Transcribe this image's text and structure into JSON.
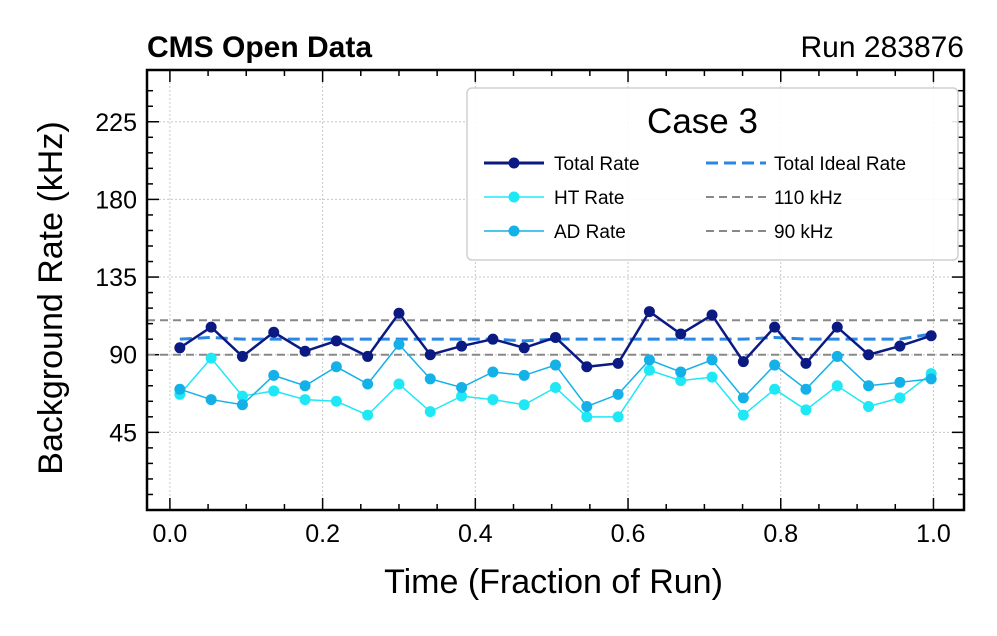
{
  "chart_data": {
    "type": "line",
    "header_left": "CMS Open Data",
    "header_right": "Run 283876",
    "xlabel": "Time (Fraction of Run)",
    "ylabel": "Background Rate (kHz)",
    "xlim": [
      -0.03,
      1.04
    ],
    "ylim": [
      0,
      255
    ],
    "x_ticks": [
      0.0,
      0.2,
      0.4,
      0.6,
      0.8,
      1.0
    ],
    "x_tick_labels": [
      "0.0",
      "0.2",
      "0.4",
      "0.6",
      "0.8",
      "1.0"
    ],
    "y_ticks": [
      45,
      90,
      135,
      180,
      225
    ],
    "y_tick_labels": [
      "45",
      "90",
      "135",
      "180",
      "225"
    ],
    "grid": true,
    "legend": {
      "title": "Case 3",
      "placement": "top-right",
      "entries": [
        "Total Rate",
        "HT Rate",
        "AD Rate",
        "Total Ideal Rate",
        "110 kHz",
        "90 kHz"
      ]
    },
    "x": [
      0.013,
      0.054,
      0.095,
      0.136,
      0.177,
      0.218,
      0.259,
      0.3,
      0.341,
      0.382,
      0.423,
      0.464,
      0.505,
      0.546,
      0.587,
      0.628,
      0.669,
      0.71,
      0.751,
      0.792,
      0.833,
      0.874,
      0.915,
      0.956,
      0.997
    ],
    "series": [
      {
        "name": "Total Rate",
        "color": "#0b1a82",
        "style": "solid-marker",
        "values": [
          94,
          106,
          89,
          103,
          92,
          98,
          89,
          114,
          90,
          95,
          99,
          94,
          100,
          83,
          85,
          115,
          102,
          113,
          86,
          106,
          85,
          106,
          90,
          95,
          101
        ]
      },
      {
        "name": "HT Rate",
        "color": "#1ee8f5",
        "style": "solid-marker",
        "values": [
          67,
          88,
          66,
          69,
          64,
          63,
          55,
          73,
          57,
          66,
          64,
          61,
          71,
          54,
          54,
          81,
          75,
          77,
          55,
          70,
          58,
          72,
          60,
          65,
          79
        ]
      },
      {
        "name": "AD Rate",
        "color": "#13b1e8",
        "style": "solid-marker",
        "values": [
          70,
          64,
          61,
          78,
          72,
          83,
          73,
          96,
          76,
          71,
          80,
          78,
          84,
          60,
          67,
          87,
          80,
          87,
          65,
          84,
          70,
          89,
          72,
          74,
          76
        ]
      },
      {
        "name": "Total Ideal Rate",
        "color": "#2a87e3",
        "style": "dashed",
        "values": [
          99,
          100,
          99,
          99,
          99,
          99,
          99,
          99,
          99,
          99,
          99,
          98,
          99,
          99,
          99,
          99,
          99,
          99,
          99,
          100,
          99,
          99,
          99,
          99,
          102
        ]
      },
      {
        "name": "110 kHz",
        "color": "#888888",
        "style": "dashed-hline",
        "value": 110
      },
      {
        "name": "90 kHz",
        "color": "#888888",
        "style": "dashed-hline",
        "value": 90
      }
    ]
  }
}
